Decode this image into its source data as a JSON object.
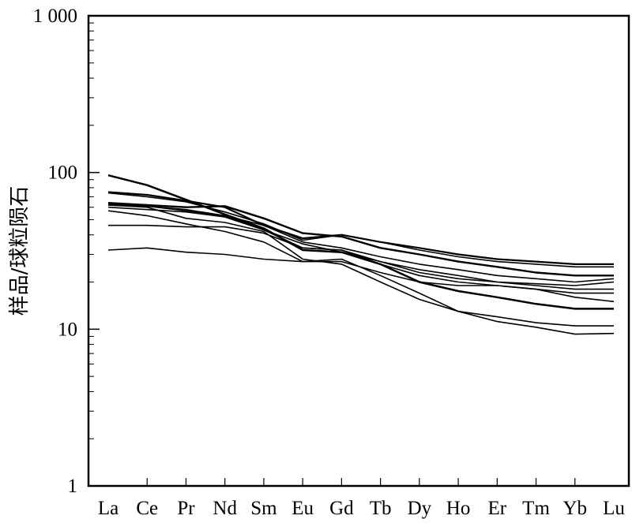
{
  "chart_data": {
    "type": "line",
    "title": "",
    "xlabel": "",
    "ylabel": "样品/球粒陨石",
    "y_scale": "log",
    "ylim": [
      1,
      1000
    ],
    "y_ticks": [
      1,
      10,
      100,
      1000
    ],
    "y_tick_labels": [
      "1",
      "10",
      "100",
      "1 000"
    ],
    "categories": [
      "La",
      "Ce",
      "Pr",
      "Nd",
      "Sm",
      "Eu",
      "Gd",
      "Tb",
      "Dy",
      "Ho",
      "Er",
      "Tm",
      "Yb",
      "Lu"
    ],
    "grid": false,
    "legend": "none",
    "line_color": "#000000",
    "series": [
      {
        "values": [
          96,
          83,
          67,
          54,
          44,
          32,
          31,
          26,
          20,
          17.5,
          16,
          14.5,
          13.5,
          13.5
        ]
      },
      {
        "values": [
          75,
          72,
          66,
          60,
          46,
          38,
          40,
          36,
          33,
          30,
          28,
          27,
          26,
          26
        ]
      },
      {
        "values": [
          74,
          70,
          65,
          56,
          47,
          37,
          40,
          36,
          32,
          29,
          27,
          26,
          25,
          25
        ]
      },
      {
        "values": [
          64,
          62,
          60,
          61,
          51,
          41,
          39,
          33,
          30,
          27,
          25,
          23,
          22,
          22
        ]
      },
      {
        "values": [
          62,
          61,
          58,
          53,
          46,
          36,
          33,
          29,
          26,
          24,
          22,
          21,
          20,
          21
        ]
      },
      {
        "values": [
          63,
          61,
          57,
          53,
          43,
          33,
          32,
          27,
          23,
          21,
          20,
          19,
          18,
          18
        ]
      },
      {
        "values": [
          60,
          58,
          56,
          52,
          43,
          35,
          31,
          27,
          24,
          22,
          20,
          19.5,
          19,
          20
        ]
      },
      {
        "values": [
          57,
          53,
          47,
          42,
          36,
          27,
          27,
          23,
          20,
          19,
          19,
          18,
          16,
          15
        ]
      },
      {
        "values": [
          46,
          46,
          45,
          45,
          41,
          33,
          32,
          26,
          22,
          20,
          19,
          18,
          17,
          17
        ]
      },
      {
        "values": [
          32,
          33,
          31,
          30,
          28,
          27,
          28,
          22,
          17,
          13,
          12,
          11,
          10.5,
          10.5
        ]
      },
      {
        "values": [
          62,
          60,
          51,
          48,
          42,
          28,
          26,
          20,
          15.5,
          13,
          11.2,
          10.3,
          9.3,
          9.4
        ]
      }
    ]
  }
}
